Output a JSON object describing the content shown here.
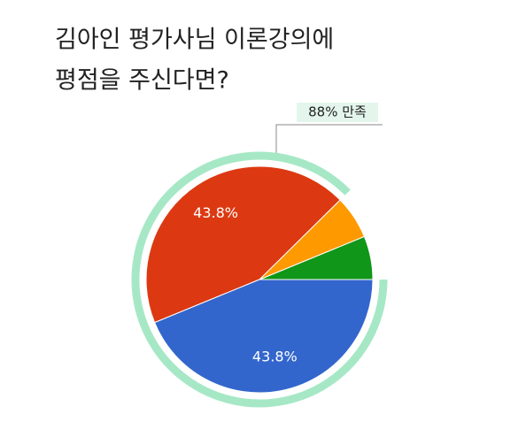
{
  "chart_data": {
    "type": "pie",
    "title_lines": [
      "김아인 평가사님 이론강의에",
      "평점을 주신다면?"
    ],
    "values": [
      6.2,
      6.2,
      43.8,
      43.8
    ],
    "value_labels": [
      null,
      null,
      "43.8%",
      "43.8%"
    ],
    "colors": [
      "#109618",
      "#ff9900",
      "#dc3912",
      "#3366cc"
    ],
    "annotation": "88% 만족"
  }
}
